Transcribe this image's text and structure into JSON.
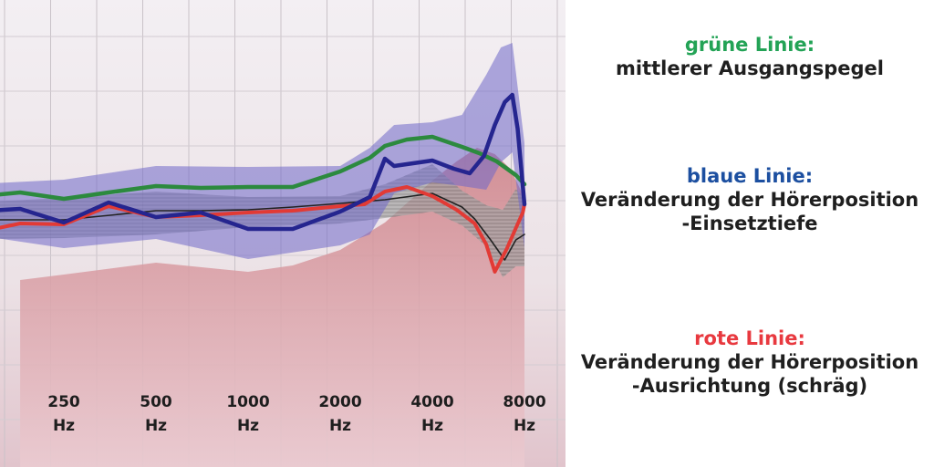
{
  "legend": {
    "green": {
      "heading": "grüne Linie:",
      "lines": [
        "mittlerer Ausgangspegel"
      ],
      "color": "#23a356"
    },
    "blue": {
      "heading": "blaue Linie:",
      "lines": [
        "Veränderung der Hörerposition",
        "-Einsetztiefe"
      ],
      "color": "#1c4fa0"
    },
    "red": {
      "heading": "rote Linie:",
      "lines": [
        "Veränderung der Hörerposition",
        "-Ausrichtung (schräg)"
      ],
      "color": "#e8393f"
    }
  },
  "chart_data": {
    "type": "line",
    "xlabel": "",
    "ylabel": "",
    "x_tick_labels": [
      {
        "value": "250",
        "unit": "Hz"
      },
      {
        "value": "500",
        "unit": "Hz"
      },
      {
        "value": "1000",
        "unit": "Hz"
      },
      {
        "value": "2000",
        "unit": "Hz"
      },
      {
        "value": "4000",
        "unit": "Hz"
      },
      {
        "value": "8000",
        "unit": "Hz"
      }
    ],
    "x_scale": "log",
    "grid": true,
    "colors": {
      "green": "#2c8a3e",
      "blue": "#25258f",
      "blue_band": "#6f68c8",
      "red": "#e23a35",
      "black": "#222222",
      "gray_band": "#8e8e8e",
      "pink_area": "#d99aa0"
    },
    "series": [
      {
        "key": "green",
        "x": [
          125,
          180,
          250,
          350,
          500,
          700,
          1000,
          1400,
          2000,
          2500,
          2800,
          3300,
          4000,
          5000,
          5700,
          6500,
          7500,
          8000
        ],
        "y": [
          21,
          26,
          19,
          26,
          33,
          31,
          32,
          32,
          49,
          64,
          77,
          84,
          87,
          76,
          69,
          60,
          45,
          35
        ]
      },
      {
        "key": "blue",
        "x": [
          125,
          180,
          250,
          350,
          500,
          700,
          1000,
          1400,
          2000,
          2500,
          2800,
          3000,
          3300,
          4000,
          4700,
          5300,
          5900,
          6400,
          6900,
          7300,
          7600,
          8000
        ],
        "y": [
          5,
          8,
          -7,
          15,
          -1,
          4,
          -14,
          -14,
          5,
          21,
          63,
          55,
          57,
          61,
          52,
          47,
          66,
          100,
          125,
          133,
          96,
          13
        ]
      },
      {
        "key": "red",
        "x": [
          125,
          180,
          250,
          350,
          500,
          700,
          1000,
          1400,
          2000,
          2400,
          2800,
          3300,
          4000,
          4800,
          5500,
          6000,
          6400,
          7000,
          7500,
          7900,
          8000
        ],
        "y": [
          -19,
          -8,
          -9,
          11,
          -1,
          1,
          4,
          6,
          11,
          13,
          27,
          32,
          22,
          7,
          -8,
          -31,
          -61,
          -36,
          -13,
          4,
          13
        ]
      },
      {
        "key": "black",
        "x": [
          125,
          250,
          500,
          700,
          1000,
          1400,
          2000,
          2800,
          4000,
          5000,
          5500,
          6200,
          6900,
          7500,
          8000
        ],
        "y": [
          -4,
          -4,
          6,
          6,
          7,
          10,
          14,
          18,
          25,
          10,
          -3,
          -26,
          -48,
          -26,
          -20
        ]
      }
    ],
    "bands": [
      {
        "key": "blue",
        "x": [
          125,
          250,
          500,
          1000,
          2000,
          2500,
          3000,
          4000,
          5000,
          6000,
          6700,
          7300,
          8000
        ],
        "upper": [
          35,
          40,
          55,
          54,
          55,
          75,
          100,
          103,
          111,
          155,
          185,
          190,
          80
        ],
        "lower": [
          -20,
          -35,
          -25,
          -47,
          -32,
          -20,
          25,
          37,
          33,
          29,
          59,
          70,
          -35
        ]
      },
      {
        "key": "gray",
        "x": [
          125,
          250,
          500,
          1000,
          2000,
          2800,
          4000,
          5000,
          6000,
          6800,
          7500,
          8000
        ],
        "upper": [
          15,
          20,
          27,
          21,
          22,
          35,
          57,
          28,
          12,
          7,
          30,
          20
        ],
        "lower": [
          -25,
          -24,
          -20,
          -12,
          -8,
          -2,
          5,
          -10,
          -33,
          -67,
          -55,
          -55
        ]
      }
    ],
    "area": {
      "key": "pink",
      "x": [
        180,
        250,
        500,
        1000,
        1400,
        2000,
        2800,
        4000,
        4800,
        5600,
        6400,
        7200,
        8000
      ],
      "y": [
        -70,
        -64,
        -51,
        -61,
        -54,
        -37,
        -7,
        39,
        60,
        75,
        68,
        52,
        20
      ]
    }
  }
}
